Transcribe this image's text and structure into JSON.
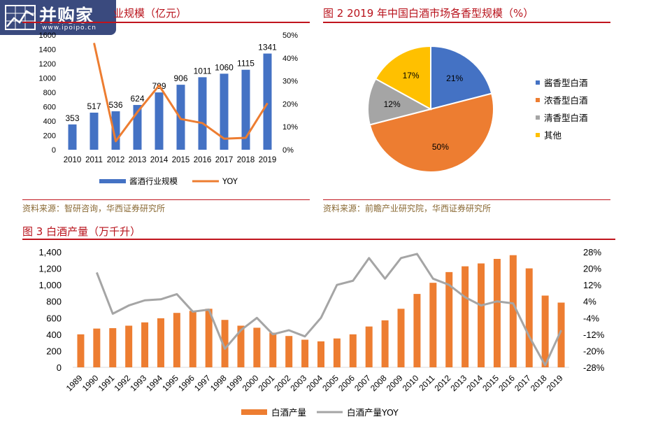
{
  "watermark": {
    "brand": "并购家",
    "url": "www.ipoipo.cn"
  },
  "figure1": {
    "title": "业规模（亿元）",
    "source": "资料来源：智研咨询，华西证券研究所",
    "chart_data": {
      "type": "bar",
      "categories": [
        "2010",
        "2011",
        "2012",
        "2013",
        "2014",
        "2015",
        "2016",
        "2017",
        "2018",
        "2019"
      ],
      "series": [
        {
          "name": "酱酒行业规模",
          "type": "bar",
          "color": "#4472c4",
          "axis": "left",
          "values": [
            353,
            517,
            536,
            624,
            799,
            906,
            1011,
            1060,
            1115,
            1341
          ]
        },
        {
          "name": "YOY",
          "type": "line",
          "color": "#ed7d31",
          "axis": "right",
          "values": [
            null,
            46.5,
            3.7,
            16.4,
            28.0,
            13.4,
            11.6,
            4.8,
            5.2,
            20.3
          ]
        }
      ],
      "ylim": [
        0,
        1600
      ],
      "y_ticks": [
        "0",
        "200",
        "400",
        "600",
        "800",
        "1000",
        "1200",
        "1400",
        "1600"
      ],
      "y2lim": [
        0,
        50
      ],
      "y2_ticks": [
        "0%",
        "10%",
        "20%",
        "30%",
        "40%",
        "50%"
      ],
      "data_labels": [
        "353",
        "517",
        "536",
        "624",
        "799",
        "906",
        "1011",
        "1060",
        "1115",
        "1341"
      ],
      "legend": "bottom"
    }
  },
  "figure2": {
    "title": "图 2 2019 年中国白酒市场各香型规模（%）",
    "source": "资料来源：前瞻产业研究院，华西证券研究所",
    "chart_data": {
      "type": "pie",
      "labels": [
        "酱香型白酒",
        "浓香型白酒",
        "清香型白酒",
        "其他"
      ],
      "values": [
        21,
        50,
        12,
        17
      ],
      "value_labels": [
        "21%",
        "50%",
        "12%",
        "17%"
      ],
      "colors": [
        "#4472c4",
        "#ed7d31",
        "#a5a5a5",
        "#ffc000"
      ],
      "legend": "right"
    }
  },
  "figure3": {
    "title": "图 3 白酒产量（万千升）",
    "chart_data": {
      "type": "bar",
      "categories": [
        "1989",
        "1990",
        "1991",
        "1992",
        "1993",
        "1994",
        "1995",
        "1996",
        "1997",
        "1998",
        "1999",
        "2000",
        "2001",
        "2002",
        "2003",
        "2004",
        "2005",
        "2006",
        "2007",
        "2008",
        "2009",
        "2010",
        "2011",
        "2012",
        "2013",
        "2014",
        "2015",
        "2016",
        "2017",
        "2018",
        "2019"
      ],
      "series": [
        {
          "name": "白酒产量",
          "type": "bar",
          "color": "#ed7d31",
          "axis": "left",
          "values": [
            400,
            470,
            475,
            505,
            545,
            595,
            660,
            685,
            710,
            575,
            505,
            480,
            420,
            380,
            335,
            315,
            350,
            400,
            495,
            570,
            710,
            890,
            1025,
            1155,
            1225,
            1260,
            1315,
            1360,
            1200,
            870,
            785
          ]
        },
        {
          "name": "白酒产量YOY",
          "type": "line",
          "color": "#a5a5a5",
          "axis": "right",
          "values": [
            null,
            18,
            -2,
            2,
            4.5,
            5,
            7.5,
            -1,
            0,
            -19,
            -10,
            -4,
            -12,
            -10,
            -13,
            -4,
            12,
            14,
            25,
            15,
            25,
            27,
            15,
            12,
            6,
            2,
            4,
            3,
            -13,
            -27,
            -10
          ]
        }
      ],
      "ylim": [
        0,
        1400
      ],
      "y_ticks": [
        "0",
        "200",
        "400",
        "600",
        "800",
        "1,000",
        "1,200",
        "1,400"
      ],
      "y2lim": [
        -28,
        28
      ],
      "y2_ticks": [
        "-28%",
        "-20%",
        "-12%",
        "-4%",
        "4%",
        "12%",
        "20%",
        "28%"
      ],
      "legend": "bottom"
    }
  }
}
